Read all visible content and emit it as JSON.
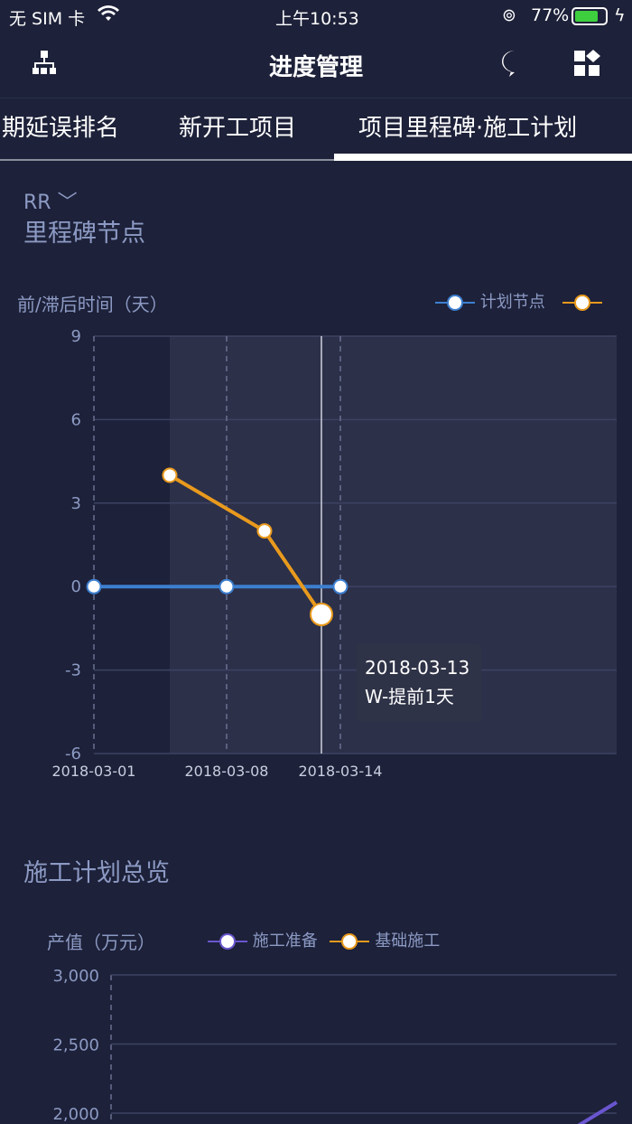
{
  "status": {
    "carrier": "无 SIM 卡",
    "time": "上午10:53",
    "battery": "77%",
    "battery_level": 0.77
  },
  "nav": {
    "title": "进度管理",
    "left_icon": "org-chart-icon",
    "right_icons": [
      "chat-icon",
      "apps-icon"
    ]
  },
  "tabs": [
    {
      "label": "期延误排名"
    },
    {
      "label": "新开工项目"
    },
    {
      "label": "项目里程碑·施工计划",
      "active": true
    }
  ],
  "selector": {
    "value": "RR"
  },
  "section1": {
    "title": "里程碑节点"
  },
  "section2": {
    "title": "施工计划总览"
  },
  "chart_data": [
    {
      "type": "line",
      "ylabel": "前/滞后时间（天）",
      "ylim": [
        -6,
        9
      ],
      "yticks": [
        "9",
        "6",
        "3",
        "0",
        "-3",
        "-6"
      ],
      "xticks": [
        "2018-03-01",
        "2018-03-08",
        "2018-03-14"
      ],
      "series": [
        {
          "name": "计划节点",
          "color": "#3d7fd0",
          "points": [
            [
              "2018-03-01",
              0
            ],
            [
              "2018-03-08",
              0
            ],
            [
              "2018-03-14",
              0
            ]
          ]
        },
        {
          "name": "",
          "color": "#e99a1d",
          "points": [
            [
              "2018-03-05",
              4
            ],
            [
              "2018-03-10",
              2
            ],
            [
              "2018-03-13",
              -1
            ]
          ]
        }
      ],
      "tooltip": {
        "date": "2018-03-13",
        "text": "W-提前1天"
      },
      "grid": true,
      "legend": "top-right"
    },
    {
      "type": "line",
      "ylabel": "产值（万元）",
      "yticks": [
        "3,000",
        "2,500",
        "2,000"
      ],
      "ylim": [
        2000,
        3000
      ],
      "series": [
        {
          "name": "施工准备",
          "color": "#6a56d0"
        },
        {
          "name": "基础施工",
          "color": "#e99a1d"
        }
      ],
      "legend": "top"
    }
  ]
}
